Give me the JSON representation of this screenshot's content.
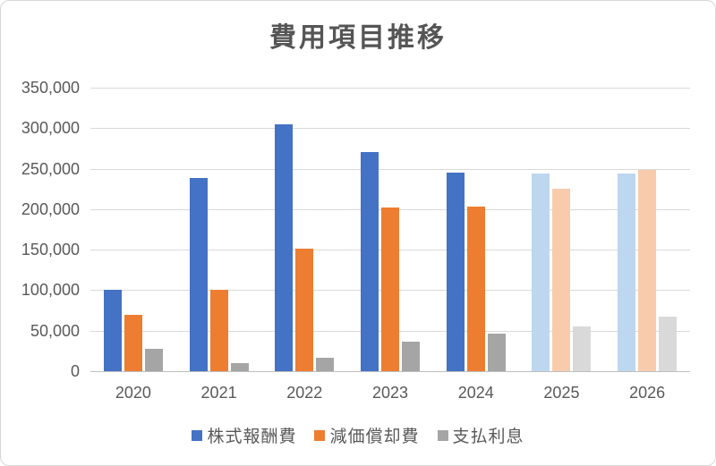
{
  "chart_data": {
    "type": "bar",
    "title": "費用項目推移",
    "categories": [
      "2020",
      "2021",
      "2022",
      "2023",
      "2024",
      "2025",
      "2026"
    ],
    "series": [
      {
        "name": "株式報酬費",
        "color": "#4472C4",
        "forecast_color": "#BDD7EE",
        "values": [
          101000,
          238000,
          305000,
          270000,
          245000,
          244000,
          244000
        ]
      },
      {
        "name": "減価償却費",
        "color": "#ED7D31",
        "forecast_color": "#F8CBAD",
        "values": [
          70000,
          101000,
          151000,
          202000,
          203000,
          225000,
          248000
        ]
      },
      {
        "name": "支払利息",
        "color": "#A5A5A5",
        "forecast_color": "#D9D9D9",
        "values": [
          28000,
          10000,
          17000,
          36000,
          46000,
          55000,
          67000
        ]
      }
    ],
    "forecast_categories": [
      "2025",
      "2026"
    ],
    "ylim": [
      0,
      350000
    ],
    "ytick_step": 50000,
    "ytick_labels": [
      "350,000",
      "300,000",
      "250,000",
      "200,000",
      "150,000",
      "100,000",
      "50,000",
      "0"
    ],
    "grid": true,
    "legend_position": "bottom",
    "colors": {
      "gridline": "#D9D9D9",
      "axis_line": "#BFBFBF",
      "label_text": "#595959",
      "title_text": "#555555",
      "background": "#FFFFFF",
      "frame_border": "#D8D8D8"
    }
  }
}
